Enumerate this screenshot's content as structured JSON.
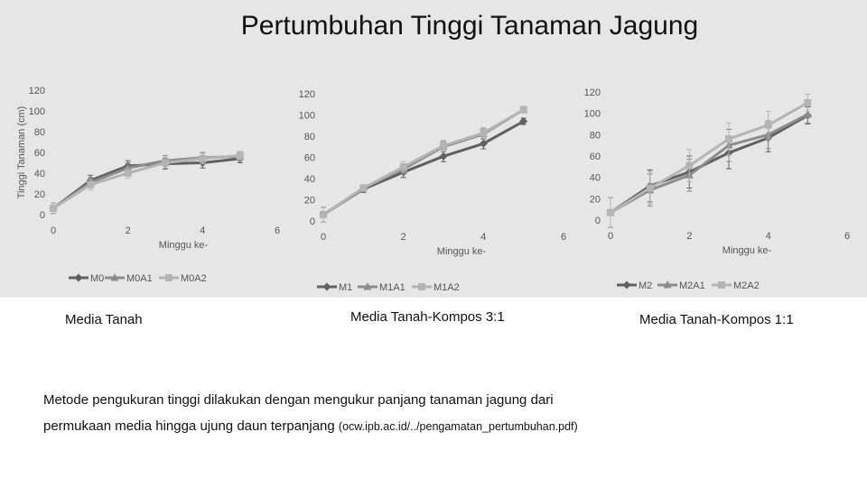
{
  "title": "Pertumbuhan Tinggi Tanaman Jagung",
  "captions": [
    "Media Tanah",
    "Media Tanah-Kompos 3:1",
    "Media Tanah-Kompos 1:1"
  ],
  "note": {
    "line1": "Metode pengukuran tinggi dilakukan dengan mengukur panjang tanaman jagung dari",
    "line2": "permukaan media hingga ujung daun terpanjang ",
    "source": "(ocw.ipb.ac.id/../pengamatan_pertumbuhan.pdf)"
  },
  "colors": {
    "series1": "#606060",
    "series2": "#8c8c8c",
    "series3": "#b4b4b4",
    "axis_text": "#555555"
  },
  "chart_data": [
    {
      "type": "line",
      "xlabel": "Minggu ke-",
      "ylabel": "Tinggi Tanaman (cm)",
      "xlim": [
        0,
        6
      ],
      "ylim": [
        0,
        120
      ],
      "xticks": [
        "0",
        "2",
        "4",
        "6"
      ],
      "yticks": [
        "0",
        "20",
        "40",
        "60",
        "80",
        "100",
        "120"
      ],
      "x": [
        0,
        1,
        2,
        3,
        4,
        5
      ],
      "series": [
        {
          "name": "M0",
          "marker": "diamond",
          "values": [
            6,
            33,
            47,
            49,
            50,
            54
          ]
        },
        {
          "name": "M0A1",
          "marker": "triangle",
          "values": [
            6,
            31,
            45,
            52,
            55,
            56
          ]
        },
        {
          "name": "M0A2",
          "marker": "square",
          "values": [
            6,
            29,
            40,
            50,
            54,
            57
          ]
        }
      ],
      "error_bars": [
        5,
        5,
        5,
        5,
        5,
        4
      ]
    },
    {
      "type": "line",
      "xlabel": "Minggu ke-",
      "ylabel": "",
      "xlim": [
        0,
        6
      ],
      "ylim": [
        0,
        120
      ],
      "xticks": [
        "0",
        "2",
        "4",
        "6"
      ],
      "yticks": [
        "0",
        "20",
        "40",
        "60",
        "80",
        "100",
        "120"
      ],
      "x": [
        0,
        1,
        2,
        3,
        4,
        5
      ],
      "series": [
        {
          "name": "M1",
          "marker": "diamond",
          "values": [
            6,
            30,
            46,
            61,
            73,
            94
          ]
        },
        {
          "name": "M1A1",
          "marker": "triangle",
          "values": [
            6,
            31,
            49,
            70,
            82,
            105
          ]
        },
        {
          "name": "M1A2",
          "marker": "square",
          "values": [
            6,
            31,
            51,
            71,
            83,
            105
          ]
        }
      ],
      "error_bars": [
        7,
        3,
        5,
        5,
        5,
        3
      ]
    },
    {
      "type": "line",
      "xlabel": "Minggu ke-",
      "ylabel": "",
      "xlim": [
        0,
        6
      ],
      "ylim": [
        0,
        120
      ],
      "xticks": [
        "0",
        "2",
        "4",
        "6"
      ],
      "yticks": [
        "0",
        "20",
        "40",
        "60",
        "80",
        "100",
        "120"
      ],
      "x": [
        0,
        1,
        2,
        3,
        4,
        5
      ],
      "series": [
        {
          "name": "M2",
          "marker": "diamond",
          "values": [
            7,
            32,
            45,
            63,
            77,
            98
          ]
        },
        {
          "name": "M2A1",
          "marker": "triangle",
          "values": [
            7,
            28,
            42,
            70,
            80,
            99
          ]
        },
        {
          "name": "M2A2",
          "marker": "square",
          "values": [
            7,
            30,
            51,
            76,
            89,
            110
          ]
        }
      ],
      "error_bars": [
        14,
        15,
        15,
        15,
        13,
        8
      ]
    }
  ]
}
